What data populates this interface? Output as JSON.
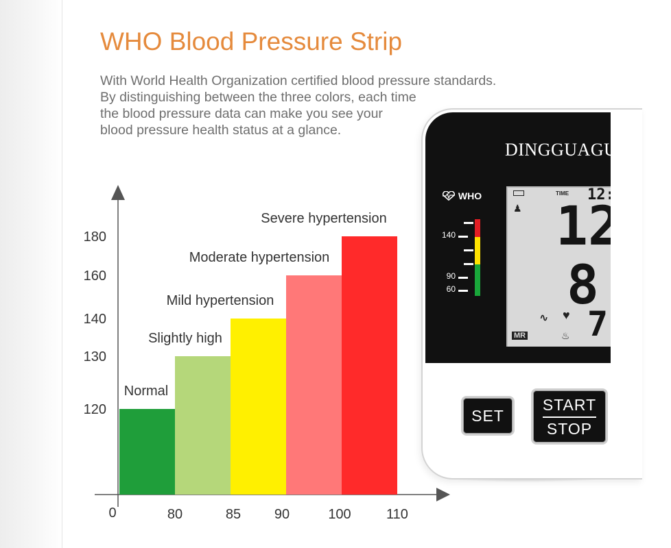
{
  "title": "WHO Blood Pressure Strip",
  "description": [
    "With World Health Organization certified blood pressure standards.",
    "By distinguishing between the three colors, each time",
    "the blood pressure data can make you see your",
    "blood pressure health status at a glance."
  ],
  "chart_data": {
    "type": "bar",
    "title": "",
    "xlabel": "",
    "ylabel": "",
    "x_origin_label": "0",
    "x_ticks": [
      "80",
      "85",
      "90",
      "100",
      "110"
    ],
    "y_ticks": [
      "120",
      "130",
      "140",
      "160",
      "180"
    ],
    "categories": [
      "Normal",
      "Slightly high",
      "Mild hypertension",
      "Moderate hypertension",
      "Severe hypertension"
    ],
    "diastolic_upper": [
      80,
      85,
      90,
      100,
      110
    ],
    "values": [
      120,
      130,
      140,
      160,
      180
    ],
    "colors": [
      "#1f9e3a",
      "#b5d77a",
      "#fff000",
      "#ff7878",
      "#ff2a2a"
    ],
    "grid": false,
    "legend": "none"
  },
  "device": {
    "brand": "DINGGUAGU",
    "who_label": "WHO",
    "strip_tick_labels": [
      "140",
      "90",
      "60"
    ],
    "strip_colors": [
      "#e31e24",
      "#ffe200",
      "#19a63a"
    ],
    "lcd": {
      "time_label": "TIME",
      "time_value": "12:",
      "systolic": "12",
      "diastolic": "8",
      "pulse": "7",
      "memory_label": "MR"
    },
    "buttons": {
      "set": "SET",
      "start": "START",
      "stop": "STOP"
    }
  }
}
